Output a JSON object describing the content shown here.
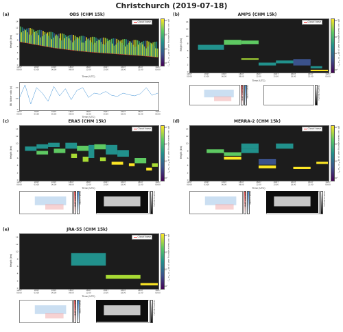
{
  "figure": {
    "title": "Christchurch (2019-07-18)"
  },
  "legend_label": "Cloud base",
  "cbar_label": "Att. vol. backscattering coef. (×10⁻⁶ m⁻¹ sr⁻¹)",
  "cbar_ticks": [
    "10³",
    "10²",
    "10¹",
    "10⁰"
  ],
  "height_label": "Height (km)",
  "time_label": "Time (UTC)",
  "y_ticks": [
    "0",
    "2",
    "4",
    "6",
    "8",
    "10",
    "12",
    "14"
  ],
  "x_ticks_main": [
    "18/07\n00:00",
    "18/07\n03:00",
    "18/07\n06:00",
    "18/07\n09:00",
    "18/07\n12:00",
    "18/07\n15:00",
    "18/07\n18:00",
    "18/07\n21:00",
    "19/07\n00:00"
  ],
  "cloud_fraction_label": "Cloud fraction (%)",
  "cloud_water_label": "Cloud water (g/kg)",
  "cloud_ice_label": "Cloud ice (g/kg)",
  "panels": {
    "a": {
      "letter": "(a)",
      "title": "OBS (CHM 15k)",
      "sub_ylabel": "EB. Water ratio (s)"
    },
    "b": {
      "letter": "(b)",
      "title": "AMPS (CHM 15k)"
    },
    "c": {
      "letter": "(c)",
      "title": "ERA5 (CHM 15k)"
    },
    "d": {
      "letter": "(d)",
      "title": "MERRA-2 (CHM 15k)"
    },
    "e": {
      "letter": "(e)",
      "title": "JRA-55 (CHM 15k)"
    }
  },
  "chart_data": [
    {
      "type": "heatmap",
      "panel": "a",
      "title": "OBS (CHM 15k)",
      "xlabel": "Time (UTC)",
      "ylabel": "Height (km)",
      "xlim": [
        0,
        24
      ],
      "ylim": [
        0,
        15
      ],
      "cloud_base_trend": {
        "x": [
          0,
          3,
          6,
          9,
          12,
          15,
          18,
          21,
          24
        ],
        "y": [
          7.5,
          6.5,
          5.5,
          4.8,
          4.2,
          3.8,
          3.4,
          3.0,
          2.5
        ]
      },
      "sub_series": {
        "ylabel": "EB. Water ratio (s)",
        "x": [
          0,
          1,
          2,
          3,
          4,
          5,
          6,
          7,
          8,
          9,
          10,
          11,
          12,
          13,
          14,
          15,
          16,
          17,
          18,
          19,
          20,
          21,
          22,
          23,
          24
        ],
        "y": [
          20,
          45,
          10,
          40,
          30,
          15,
          42,
          25,
          38,
          18,
          35,
          40,
          22,
          30,
          28,
          33,
          26,
          24,
          30,
          27,
          25,
          29,
          40,
          26,
          30
        ]
      }
    },
    {
      "type": "heatmap",
      "panel": "b",
      "title": "AMPS (CHM 15k)",
      "xlabel": "Time (UTC)",
      "ylabel": "Height (km)",
      "xlim": [
        0,
        24
      ],
      "ylim": [
        0,
        15
      ],
      "cells": [
        {
          "t0": 1.5,
          "t1": 6,
          "z0": 6.2,
          "z1": 7.6,
          "level": 2
        },
        {
          "t0": 6,
          "t1": 9,
          "z0": 7.6,
          "z1": 9.0,
          "level": 3
        },
        {
          "t0": 9,
          "t1": 12,
          "z0": 7.8,
          "z1": 8.8,
          "level": 3
        },
        {
          "t0": 9,
          "t1": 12,
          "z0": 3.4,
          "z1": 3.8,
          "level": 4
        },
        {
          "t0": 12,
          "t1": 15,
          "z0": 1.8,
          "z1": 2.6,
          "level": 2
        },
        {
          "t0": 15,
          "t1": 18,
          "z0": 2.4,
          "z1": 3.2,
          "level": 2
        },
        {
          "t0": 18,
          "t1": 21,
          "z0": 1.8,
          "z1": 3.6,
          "level": 1
        },
        {
          "t0": 21,
          "t1": 23,
          "z0": 1.0,
          "z1": 1.6,
          "level": 2
        },
        {
          "t0": 21,
          "t1": 24,
          "z0": 0.2,
          "z1": 0.6,
          "level": 5
        }
      ]
    },
    {
      "type": "heatmap",
      "panel": "c",
      "title": "ERA5 (CHM 15k)",
      "xlabel": "Time (UTC)",
      "ylabel": "Height (km)",
      "xlim": [
        0,
        24
      ],
      "ylim": [
        0,
        15
      ],
      "cells": [
        {
          "t0": 1,
          "t1": 3,
          "z0": 8.0,
          "z1": 9.2,
          "level": 2
        },
        {
          "t0": 3,
          "t1": 5,
          "z0": 8.6,
          "z1": 9.8,
          "level": 2
        },
        {
          "t0": 3,
          "t1": 5,
          "z0": 7.0,
          "z1": 8.0,
          "level": 3
        },
        {
          "t0": 5,
          "t1": 7,
          "z0": 9.0,
          "z1": 10.2,
          "level": 2
        },
        {
          "t0": 6,
          "t1": 8,
          "z0": 7.4,
          "z1": 8.6,
          "level": 3
        },
        {
          "t0": 8,
          "t1": 10,
          "z0": 8.6,
          "z1": 10.2,
          "level": 2
        },
        {
          "t0": 9,
          "t1": 10,
          "z0": 6.0,
          "z1": 7.2,
          "level": 4
        },
        {
          "t0": 10,
          "t1": 12,
          "z0": 8.0,
          "z1": 9.4,
          "level": 3
        },
        {
          "t0": 11,
          "t1": 12,
          "z0": 5.0,
          "z1": 6.4,
          "level": 4
        },
        {
          "t0": 12,
          "t1": 13,
          "z0": 6.0,
          "z1": 9.6,
          "level": 2
        },
        {
          "t0": 13,
          "t1": 15,
          "z0": 8.4,
          "z1": 9.8,
          "level": 3
        },
        {
          "t0": 14,
          "t1": 15,
          "z0": 5.2,
          "z1": 6.2,
          "level": 4
        },
        {
          "t0": 15,
          "t1": 17,
          "z0": 7.0,
          "z1": 9.6,
          "level": 2
        },
        {
          "t0": 16,
          "t1": 18,
          "z0": 4.2,
          "z1": 5.0,
          "level": 5
        },
        {
          "t0": 17,
          "t1": 19,
          "z0": 6.4,
          "z1": 8.2,
          "level": 2
        },
        {
          "t0": 19,
          "t1": 20,
          "z0": 3.8,
          "z1": 4.6,
          "level": 5
        },
        {
          "t0": 20,
          "t1": 22,
          "z0": 4.6,
          "z1": 6.0,
          "level": 3
        },
        {
          "t0": 22,
          "t1": 23,
          "z0": 2.6,
          "z1": 3.4,
          "level": 5
        },
        {
          "t0": 23,
          "t1": 24,
          "z0": 3.6,
          "z1": 4.6,
          "level": 4
        }
      ]
    },
    {
      "type": "heatmap",
      "panel": "d",
      "title": "MERRA-2 (CHM 15k)",
      "xlabel": "Time (UTC)",
      "ylabel": "Height (km)",
      "xlim": [
        0,
        24
      ],
      "ylim": [
        0,
        15
      ],
      "cells": [
        {
          "t0": 3,
          "t1": 6,
          "z0": 7.4,
          "z1": 8.4,
          "level": 3
        },
        {
          "t0": 6,
          "t1": 9,
          "z0": 6.6,
          "z1": 7.6,
          "level": 3
        },
        {
          "t0": 6,
          "t1": 9,
          "z0": 5.6,
          "z1": 6.4,
          "level": 5
        },
        {
          "t0": 9,
          "t1": 12,
          "z0": 8.6,
          "z1": 10.0,
          "level": 2
        },
        {
          "t0": 9,
          "t1": 12,
          "z0": 7.4,
          "z1": 8.6,
          "level": 2
        },
        {
          "t0": 12,
          "t1": 15,
          "z0": 4.2,
          "z1": 5.8,
          "level": 1
        },
        {
          "t0": 12,
          "t1": 15,
          "z0": 3.2,
          "z1": 4.0,
          "level": 5
        },
        {
          "t0": 15,
          "t1": 18,
          "z0": 8.6,
          "z1": 10.0,
          "level": 2
        },
        {
          "t0": 18,
          "t1": 21,
          "z0": 3.0,
          "z1": 3.6,
          "level": 5
        },
        {
          "t0": 22,
          "t1": 24,
          "z0": 4.4,
          "z1": 5.0,
          "level": 5
        }
      ]
    },
    {
      "type": "heatmap",
      "panel": "e",
      "title": "JRA-55 (CHM 15k)",
      "xlabel": "Time (UTC)",
      "ylabel": "Height (km)",
      "xlim": [
        0,
        24
      ],
      "ylim": [
        0,
        15
      ],
      "cells": [
        {
          "t0": 9,
          "t1": 15,
          "z0": 6.2,
          "z1": 9.6,
          "level": 2
        },
        {
          "t0": 15,
          "t1": 21,
          "z0": 2.6,
          "z1": 3.6,
          "level": 4
        },
        {
          "t0": 21,
          "t1": 24,
          "z0": 0.8,
          "z1": 1.4,
          "level": 5
        }
      ]
    }
  ]
}
